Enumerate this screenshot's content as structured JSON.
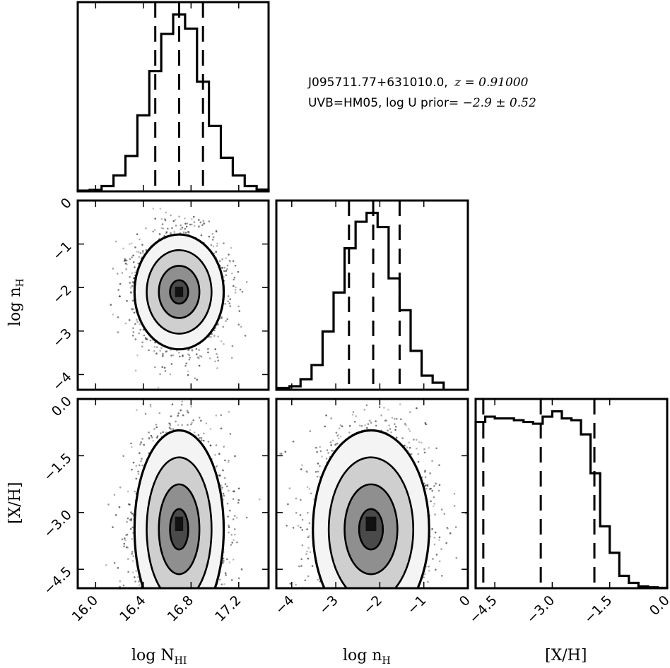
{
  "title": {
    "line1_name": "J095711.77+631010.0,",
    "line1_z": "z = 0.91000",
    "line2_text": "UVB=HM05, log U prior=",
    "line2_value": "−2.9 ± 0.52"
  },
  "axis_labels": {
    "logNHI_x": "log N",
    "logNHI_sub": "HI",
    "lognH_x": "log n",
    "lognH_sub": "H",
    "XH_x": "[X/H]",
    "lognH_y": "log n",
    "lognH_y_sub": "H",
    "XH_y": "[X/H]"
  },
  "chart_data": [
    {
      "type": "bar",
      "panel": "logNHI-histogram",
      "xlabel": "log N_HI",
      "xlim": [
        15.85,
        17.45
      ],
      "x_ticks": [
        16.0,
        16.4,
        16.8,
        17.2
      ],
      "x_tick_labels": [
        "16.0",
        "16.4",
        "16.8",
        "17.2"
      ],
      "bin_edges": [
        15.85,
        15.95,
        16.05,
        16.15,
        16.25,
        16.35,
        16.45,
        16.55,
        16.65,
        16.75,
        16.85,
        16.95,
        17.05,
        17.15,
        17.25,
        17.35,
        17.45
      ],
      "values": [
        0.004,
        0.008,
        0.03,
        0.09,
        0.2,
        0.43,
        0.68,
        0.89,
        1.0,
        0.92,
        0.62,
        0.37,
        0.19,
        0.09,
        0.03,
        0.01
      ],
      "quantile_lines": [
        16.5,
        16.7,
        16.9
      ]
    },
    {
      "type": "scatter",
      "panel": "logNHI-vs-lognH",
      "xlabel": "log N_HI",
      "ylabel": "log n_H",
      "xlim": [
        15.85,
        17.45
      ],
      "ylim": [
        -4.35,
        0.0
      ],
      "x_ticks": [
        16.0,
        16.4,
        16.8,
        17.2
      ],
      "y_ticks": [
        0,
        -1,
        -2,
        -3,
        -4
      ],
      "y_tick_labels": [
        "0",
        "−1",
        "−2",
        "−3",
        "−4"
      ],
      "center": [
        16.7,
        -2.1
      ],
      "spread": [
        0.17,
        0.6
      ],
      "contour_levels": [
        "1-sigma",
        "2-sigma",
        "3-sigma"
      ]
    },
    {
      "type": "bar",
      "panel": "lognH-histogram",
      "xlabel": "log n_H",
      "xlim": [
        -4.35,
        0.0
      ],
      "x_ticks": [
        -4,
        -3,
        -2,
        -1,
        0
      ],
      "x_tick_labels": [
        "−4",
        "−3",
        "−2",
        "−1",
        "0"
      ],
      "bin_edges": [
        -4.3,
        -4.05,
        -3.8,
        -3.55,
        -3.3,
        -3.05,
        -2.8,
        -2.55,
        -2.3,
        -2.05,
        -1.8,
        -1.55,
        -1.3,
        -1.05,
        -0.8,
        -0.55
      ],
      "values": [
        0.01,
        0.02,
        0.06,
        0.14,
        0.33,
        0.55,
        0.8,
        0.95,
        1.0,
        0.92,
        0.63,
        0.45,
        0.22,
        0.08,
        0.04
      ],
      "quantile_lines": [
        -2.7,
        -2.15,
        -1.55
      ]
    },
    {
      "type": "scatter",
      "panel": "logNHI-vs-XH",
      "xlabel": "log N_HI",
      "ylabel": "[X/H]",
      "xlim": [
        15.85,
        17.45
      ],
      "ylim": [
        -5.0,
        0.0
      ],
      "x_ticks": [
        16.0,
        16.4,
        16.8,
        17.2
      ],
      "y_ticks": [
        0.0,
        -1.5,
        -3.0,
        -4.5
      ],
      "y_tick_labels": [
        "0.0",
        "−1.5",
        "−3.0",
        "−4.5"
      ],
      "center": [
        16.7,
        -3.3
      ],
      "spread": [
        0.17,
        0.95
      ]
    },
    {
      "type": "scatter",
      "panel": "lognH-vs-XH",
      "xlabel": "log n_H",
      "ylabel": "[X/H]",
      "xlim": [
        -4.35,
        0.0
      ],
      "ylim": [
        -5.0,
        0.0
      ],
      "x_ticks": [
        -4,
        -3,
        -2,
        -1,
        0
      ],
      "center": [
        -2.2,
        -3.3
      ],
      "spread": [
        0.6,
        0.95
      ]
    },
    {
      "type": "bar",
      "panel": "XH-histogram",
      "xlabel": "[X/H]",
      "xlim": [
        -5.0,
        0.0
      ],
      "x_ticks": [
        -4.5,
        -3.0,
        -1.5,
        0.0
      ],
      "x_tick_labels": [
        "−4.5",
        "−3.0",
        "−1.5",
        "0.0"
      ],
      "bin_edges": [
        -5.0,
        -4.75,
        -4.5,
        -4.25,
        -4.0,
        -3.75,
        -3.5,
        -3.25,
        -3.0,
        -2.75,
        -2.5,
        -2.25,
        -2.0,
        -1.75,
        -1.5,
        -1.25,
        -1.0,
        -0.75,
        -0.5,
        -0.25,
        0.0
      ],
      "values": [
        0.94,
        0.97,
        0.96,
        0.96,
        0.95,
        0.94,
        0.93,
        0.97,
        1.0,
        0.96,
        0.95,
        0.87,
        0.65,
        0.35,
        0.2,
        0.07,
        0.03,
        0.01,
        0.005,
        0.002
      ],
      "quantile_lines": [
        -4.8,
        -3.3,
        -1.9
      ]
    }
  ]
}
